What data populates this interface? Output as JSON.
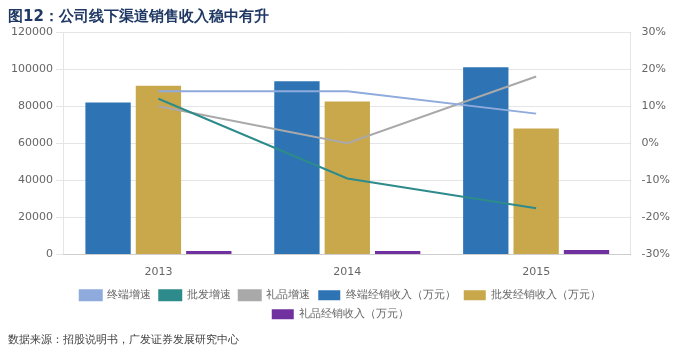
{
  "chart_data": {
    "type": "bar",
    "title": "图12：公司线下渠道销售收入稳中有升",
    "annotations": [
      "数据来源：招股说明书，广发证券发展研究中心"
    ],
    "categories": [
      "2013",
      "2014",
      "2015"
    ],
    "series": [
      {
        "name": "终端经销收入（万元）",
        "type": "bar",
        "color": "#2E74B5",
        "values": [
          82000,
          93500,
          101000
        ]
      },
      {
        "name": "批发经销收入（万元）",
        "type": "bar",
        "color": "#C9A84C",
        "values": [
          91000,
          82500,
          68000
        ]
      },
      {
        "name": "礼品经销收入（万元）",
        "type": "bar",
        "color": "#7030A0",
        "values": [
          2000,
          2000,
          2500
        ]
      },
      {
        "name": "终端增速",
        "type": "line",
        "axis": "y2",
        "color": "#8FAADC",
        "values": [
          0.14,
          0.14,
          0.08
        ]
      },
      {
        "name": "批发增速",
        "type": "line",
        "axis": "y2",
        "color": "#2E8B8B",
        "values": [
          0.12,
          -0.095,
          -0.175
        ]
      },
      {
        "name": "礼品增速",
        "type": "line",
        "axis": "y2",
        "color": "#A9A9A9",
        "values": [
          0.1,
          0.0,
          0.18
        ]
      }
    ],
    "ylim": [
      0,
      120000
    ],
    "yticks": [
      0,
      20000,
      40000,
      60000,
      80000,
      100000,
      120000
    ],
    "y2lim": [
      -0.3,
      0.3
    ],
    "y2ticks": [
      {
        "value": -0.3,
        "label": "-30%"
      },
      {
        "value": -0.2,
        "label": "-20%"
      },
      {
        "value": -0.1,
        "label": "-10%"
      },
      {
        "value": 0.0,
        "label": "0%"
      },
      {
        "value": 0.1,
        "label": "10%"
      },
      {
        "value": 0.2,
        "label": "20%"
      },
      {
        "value": 0.3,
        "label": "30%"
      }
    ],
    "grid": true,
    "legend": "bottom"
  }
}
